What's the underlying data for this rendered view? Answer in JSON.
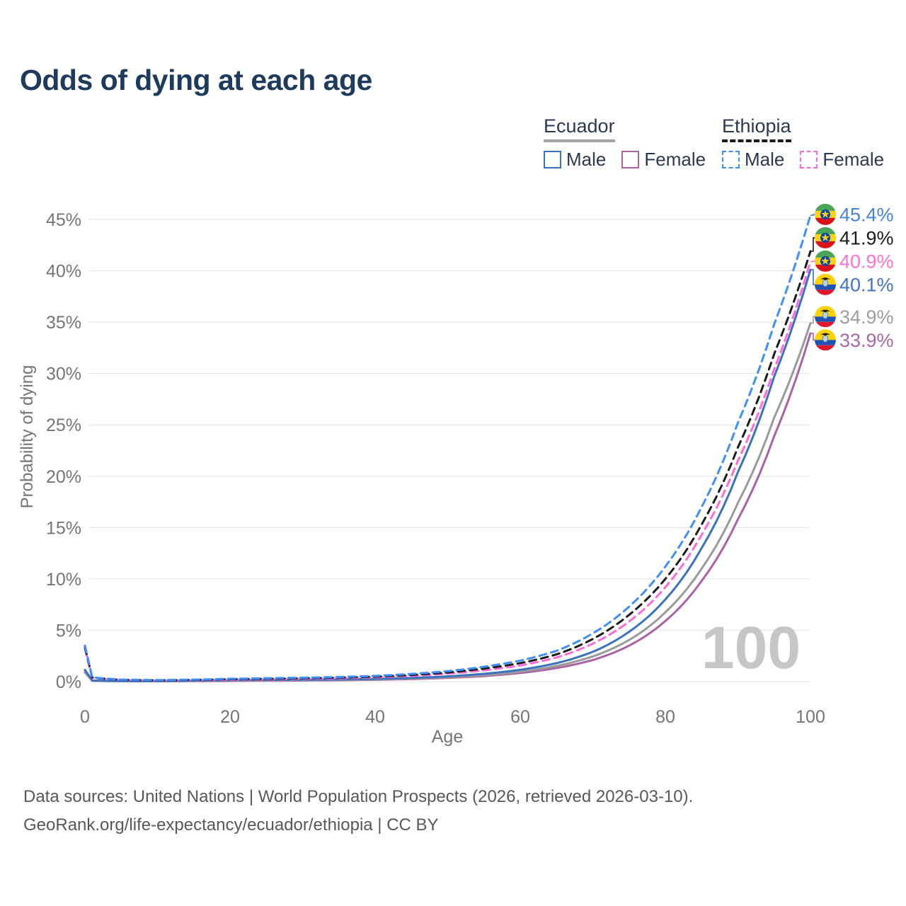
{
  "title": "Odds of dying at each age",
  "watermark": "100",
  "legend": {
    "groups": [
      {
        "country": "Ecuador",
        "line_style": "solid",
        "underline_color": "#a3a3a3",
        "items": [
          {
            "label": "Male",
            "color": "#3a72be"
          },
          {
            "label": "Female",
            "color": "#aa62a5"
          }
        ]
      },
      {
        "country": "Ethiopia",
        "line_style": "dashed",
        "underline_color": "#1a1a1a",
        "items": [
          {
            "label": "Male",
            "color": "#3e8efc"
          },
          {
            "label": "Female",
            "color": "#ff6ad5"
          }
        ]
      }
    ]
  },
  "footer": {
    "line1": "Data sources: United Nations | World Population Prospects (2026, retrieved 2026-03-10).",
    "line2": "GeoRank.org/life-expectancy/ecuador/ethiopia | CC BY"
  },
  "flags": {
    "Ethiopia": {
      "green": "#4aa657",
      "yellow": "#fcd116",
      "red": "#da121a",
      "disc": "#0a47a9",
      "star": "#fcd116"
    },
    "Ecuador": {
      "yellow": "#ffd100",
      "blue": "#2053b4",
      "red": "#e0162b",
      "oval": "#b8d4ea",
      "oval_edge": "#5b84b0",
      "condor": "#1a1a1a"
    }
  },
  "chart_data": {
    "type": "line",
    "title": "Odds of dying at each age",
    "xlabel": "Age",
    "ylabel": "Probability of dying",
    "xlim": [
      0,
      100
    ],
    "ylim_percent": [
      0,
      45
    ],
    "x_ticks": [
      0,
      20,
      40,
      60,
      80,
      100
    ],
    "y_ticks_percent": [
      0,
      5,
      10,
      15,
      20,
      25,
      30,
      35,
      40,
      45
    ],
    "y_tick_suffix": "%",
    "grid": true,
    "legend_position": "top-right",
    "hover_age_readout": "100",
    "x": [
      0,
      1,
      5,
      10,
      15,
      20,
      25,
      30,
      35,
      40,
      45,
      50,
      55,
      60,
      65,
      70,
      75,
      80,
      85,
      90,
      95,
      100
    ],
    "series": [
      {
        "name": "Ethiopia Male",
        "country": "Ethiopia",
        "sex": "Male",
        "color": "#3e8efc",
        "dash": true,
        "end_label": "45.4%",
        "label_color": "#4584d8",
        "values_percent": [
          3.5,
          0.42,
          0.2,
          0.15,
          0.2,
          0.28,
          0.33,
          0.38,
          0.45,
          0.56,
          0.75,
          1.02,
          1.45,
          2.05,
          3.0,
          4.7,
          7.3,
          11.2,
          17.0,
          25.2,
          34.8,
          45.4
        ]
      },
      {
        "name": "Ethiopia Both sexes",
        "country": "Ethiopia",
        "sex": "Both",
        "color": "#1b1b1b",
        "dash": true,
        "end_label": "41.9%",
        "label_color": "#1a1a1a",
        "values_percent": [
          3.35,
          0.4,
          0.18,
          0.13,
          0.17,
          0.24,
          0.28,
          0.33,
          0.39,
          0.49,
          0.65,
          0.89,
          1.27,
          1.8,
          2.65,
          4.15,
          6.5,
          10.0,
          15.3,
          22.8,
          31.9,
          41.9
        ]
      },
      {
        "name": "Ethiopia Female",
        "country": "Ethiopia",
        "sex": "Female",
        "color": "#ff6ad5",
        "dash": true,
        "end_label": "40.9%",
        "label_color": "#ff70d2",
        "values_percent": [
          3.2,
          0.38,
          0.17,
          0.12,
          0.14,
          0.19,
          0.23,
          0.27,
          0.33,
          0.42,
          0.56,
          0.77,
          1.1,
          1.57,
          2.35,
          3.7,
          5.85,
          9.2,
          14.3,
          21.5,
          30.4,
          40.9
        ]
      },
      {
        "name": "Ecuador Male",
        "country": "Ecuador",
        "sex": "Male",
        "color": "#3a72be",
        "dash": false,
        "end_label": "40.1%",
        "label_color": "#4273c8",
        "values_percent": [
          1.15,
          0.1,
          0.05,
          0.05,
          0.09,
          0.14,
          0.17,
          0.19,
          0.22,
          0.27,
          0.36,
          0.51,
          0.76,
          1.15,
          1.8,
          2.9,
          4.85,
          8.0,
          13.0,
          20.4,
          29.7,
          40.1
        ]
      },
      {
        "name": "Ecuador Both sexes",
        "country": "Ecuador",
        "sex": "Both",
        "color": "#9a9a9a",
        "dash": false,
        "end_label": "34.9%",
        "label_color": "#9e9e9e",
        "values_percent": [
          1.0,
          0.09,
          0.045,
          0.04,
          0.07,
          0.11,
          0.13,
          0.15,
          0.18,
          0.22,
          0.3,
          0.43,
          0.63,
          0.97,
          1.52,
          2.45,
          4.05,
          6.75,
          11.0,
          17.4,
          25.7,
          34.9
        ]
      },
      {
        "name": "Ecuador Female",
        "country": "Ecuador",
        "sex": "Female",
        "color": "#aa62a5",
        "dash": false,
        "end_label": "33.9%",
        "label_color": "#a767a7",
        "values_percent": [
          0.9,
          0.08,
          0.04,
          0.035,
          0.05,
          0.07,
          0.09,
          0.11,
          0.14,
          0.18,
          0.25,
          0.36,
          0.54,
          0.84,
          1.32,
          2.1,
          3.5,
          5.9,
          9.8,
          15.8,
          23.9,
          33.9
        ]
      }
    ]
  }
}
